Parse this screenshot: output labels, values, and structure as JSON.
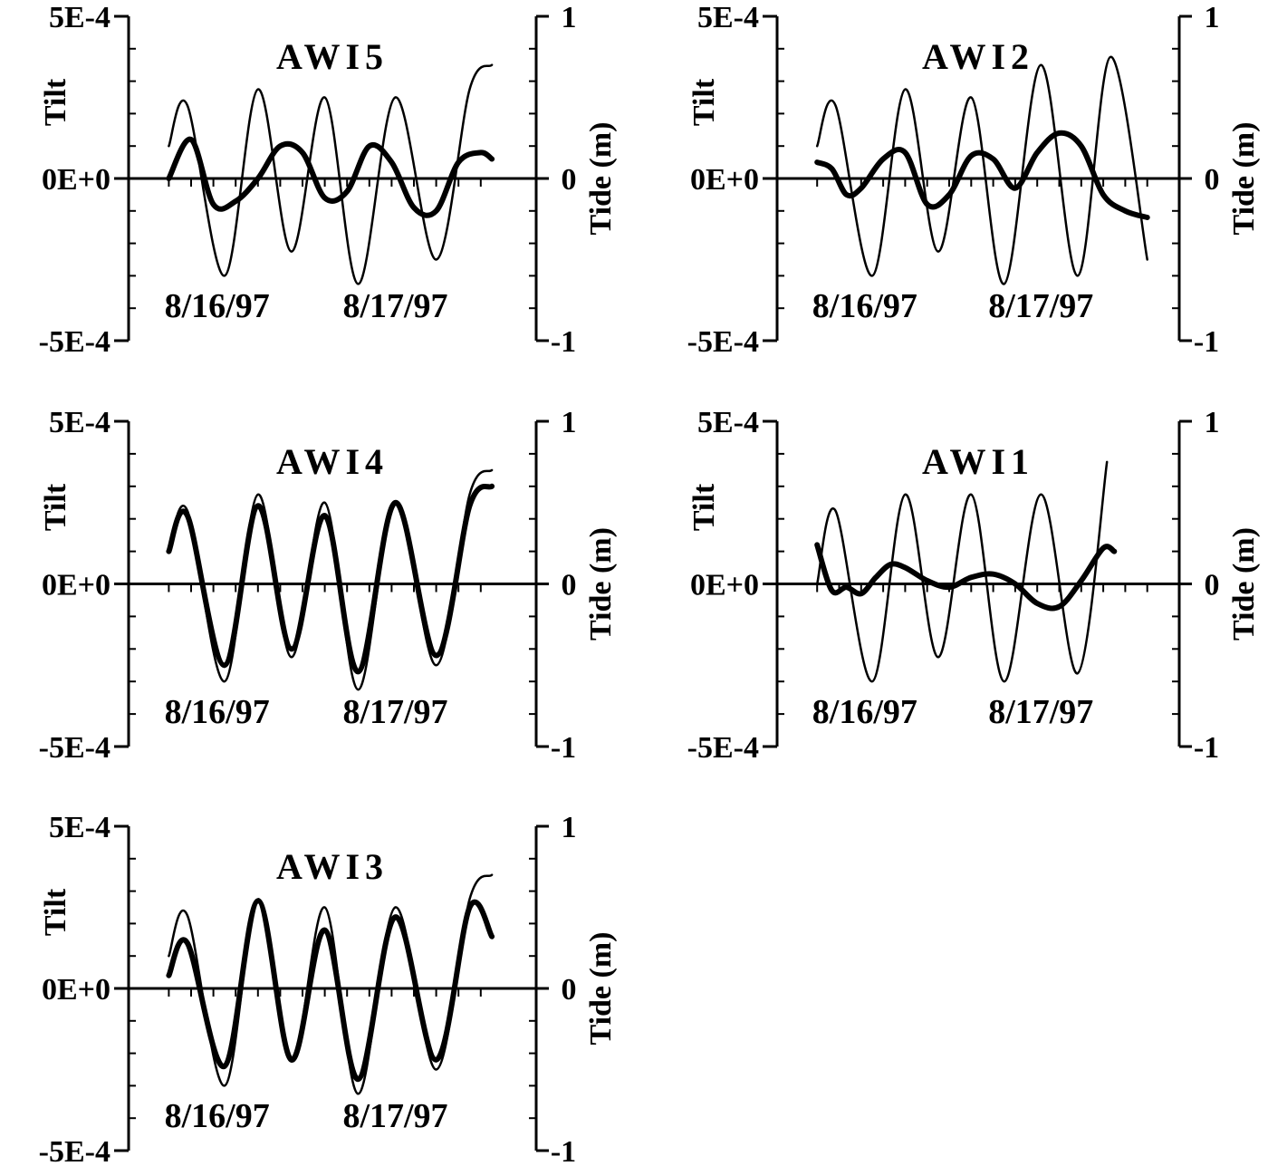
{
  "chart_data": [
    {
      "type": "line",
      "title": "AWI5",
      "ylabel": "Tilt",
      "y2label": "Tide (m)",
      "yticks": [
        "5E-4",
        "0E+0",
        "-5E-4"
      ],
      "y2ticks": [
        "1",
        "0",
        "-1"
      ],
      "ylim": [
        -0.0005,
        0.0005
      ],
      "y2lim": [
        -1,
        1
      ],
      "xlim": [
        0,
        48
      ],
      "date_labels": [
        "8/16/97",
        "8/17/97"
      ],
      "x_hours": [
        2,
        5,
        8,
        11,
        14,
        17,
        20,
        23,
        26,
        29,
        32,
        35,
        38,
        41,
        44
      ],
      "series": [
        {
          "role": "tide",
          "x": [
            2,
            4.5,
            9.5,
            14,
            18.5,
            23,
            27.5,
            32.5,
            38,
            42.5,
            45.5
          ],
          "values": [
            0.2,
            0.45,
            -0.6,
            0.55,
            -0.45,
            0.5,
            -0.65,
            0.5,
            -0.5,
            0.55,
            0.7
          ]
        },
        {
          "role": "tilt",
          "x": [
            2,
            5,
            8,
            11,
            14,
            17,
            20,
            23,
            26,
            29,
            32,
            35,
            38,
            41,
            44,
            45.5
          ],
          "values": [
            0.0,
            0.00012,
            -8e-05,
            -7e-05,
            0.0,
            0.0001,
            8e-05,
            -6e-05,
            -4e-05,
            0.0001,
            5e-05,
            -9e-05,
            -0.0001,
            5e-05,
            8e-05,
            6e-05
          ]
        }
      ]
    },
    {
      "type": "line",
      "title": "AWI2",
      "ylabel": "Tilt",
      "y2label": "Tide (m)",
      "yticks": [
        "5E-4",
        "0E+0",
        "-5E-4"
      ],
      "y2ticks": [
        "1",
        "0",
        "-1"
      ],
      "ylim": [
        -0.0005,
        0.0005
      ],
      "y2lim": [
        -1,
        1
      ],
      "xlim": [
        0,
        48
      ],
      "date_labels": [
        "8/16/97",
        "8/17/97"
      ],
      "x_hours": [
        2,
        5,
        8,
        11,
        14,
        17,
        20,
        23,
        26,
        29,
        32,
        35,
        38,
        41,
        44,
        47
      ],
      "series": [
        {
          "role": "tide",
          "x": [
            2,
            4.5,
            9.5,
            14,
            18.5,
            23,
            27.5,
            32.5,
            37.5,
            42,
            47
          ],
          "values": [
            0.2,
            0.45,
            -0.6,
            0.55,
            -0.45,
            0.5,
            -0.65,
            0.7,
            -0.6,
            0.75,
            -0.5
          ]
        },
        {
          "role": "tilt",
          "x": [
            2,
            4,
            6,
            8,
            11,
            14,
            17,
            20,
            23,
            26,
            29,
            32,
            35,
            38,
            41,
            44,
            47
          ],
          "values": [
            5e-05,
            3e-05,
            -5e-05,
            -3e-05,
            6e-05,
            8e-05,
            -8e-05,
            -5e-05,
            7e-05,
            6e-05,
            -3e-05,
            8e-05,
            0.00014,
            0.0001,
            -5e-05,
            -0.0001,
            -0.00012
          ]
        }
      ]
    },
    {
      "type": "line",
      "title": "AWI4",
      "ylabel": "Tilt",
      "y2label": "Tide (m)",
      "yticks": [
        "5E-4",
        "0E+0",
        "-5E-4"
      ],
      "y2ticks": [
        "1",
        "0",
        "-1"
      ],
      "ylim": [
        -0.0005,
        0.0005
      ],
      "y2lim": [
        -1,
        1
      ],
      "xlim": [
        0,
        48
      ],
      "date_labels": [
        "8/16/97",
        "8/17/97"
      ],
      "x_hours": [
        2,
        5,
        8,
        11,
        14,
        17,
        20,
        23,
        26,
        29,
        32,
        35,
        38,
        41,
        44
      ],
      "series": [
        {
          "role": "tide",
          "x": [
            2,
            4.5,
            9.5,
            14,
            18.5,
            23,
            27.5,
            32.5,
            38,
            42.5,
            45.5
          ],
          "values": [
            0.2,
            0.45,
            -0.6,
            0.55,
            -0.45,
            0.5,
            -0.65,
            0.5,
            -0.5,
            0.55,
            0.7
          ]
        },
        {
          "role": "tilt",
          "x": [
            2,
            4.5,
            9.5,
            14,
            18.5,
            23,
            27.5,
            32.5,
            38,
            42.5,
            45.5
          ],
          "values": [
            0.0001,
            0.00021,
            -0.00025,
            0.00024,
            -0.0002,
            0.00021,
            -0.00027,
            0.00025,
            -0.00022,
            0.00024,
            0.0003
          ]
        }
      ]
    },
    {
      "type": "line",
      "title": "AWI1",
      "ylabel": "Tilt",
      "y2label": "Tide (m)",
      "yticks": [
        "5E-4",
        "0E+0",
        "-5E-4"
      ],
      "y2ticks": [
        "1",
        "0",
        "-1"
      ],
      "ylim": [
        -0.0005,
        0.0005
      ],
      "y2lim": [
        -1,
        1
      ],
      "xlim": [
        0,
        48
      ],
      "date_labels": [
        "8/16/97",
        "8/17/97"
      ],
      "x_hours": [
        2,
        5,
        8,
        11,
        14,
        17,
        20,
        23,
        26,
        29,
        32,
        35,
        38,
        41,
        44,
        47
      ],
      "series": [
        {
          "role": "tide",
          "x": [
            2,
            4.5,
            9.5,
            14,
            18.5,
            23,
            27.5,
            32.5,
            37.5,
            41.5
          ],
          "values": [
            0.0,
            0.45,
            -0.6,
            0.55,
            -0.45,
            0.55,
            -0.6,
            0.55,
            -0.55,
            0.75
          ]
        },
        {
          "role": "tilt",
          "x": [
            2,
            4,
            6,
            8,
            10,
            12,
            14,
            17,
            20,
            23,
            26,
            29,
            32,
            35,
            38,
            41,
            42.5
          ],
          "values": [
            0.00012,
            -2e-05,
            -1e-05,
            -3e-05,
            2e-05,
            6e-05,
            5e-05,
            1e-05,
            -1e-05,
            2e-05,
            3e-05,
            0.0,
            -6e-05,
            -7e-05,
            1e-05,
            0.00011,
            0.0001
          ]
        }
      ]
    },
    {
      "type": "line",
      "title": "AWI3",
      "ylabel": "Tilt",
      "y2label": "Tide (m)",
      "yticks": [
        "5E-4",
        "0E+0",
        "-5E-4"
      ],
      "y2ticks": [
        "1",
        "0",
        "-1"
      ],
      "ylim": [
        -0.0005,
        0.0005
      ],
      "y2lim": [
        -1,
        1
      ],
      "xlim": [
        0,
        48
      ],
      "date_labels": [
        "8/16/97",
        "8/17/97"
      ],
      "x_hours": [
        2,
        5,
        8,
        11,
        14,
        17,
        20,
        23,
        26,
        29,
        32,
        35,
        38,
        41,
        44
      ],
      "series": [
        {
          "role": "tide",
          "x": [
            2,
            4.5,
            9.5,
            14,
            18.5,
            23,
            27.5,
            32.5,
            38,
            42.5,
            45.5
          ],
          "values": [
            0.2,
            0.45,
            -0.6,
            0.55,
            -0.45,
            0.5,
            -0.65,
            0.5,
            -0.5,
            0.55,
            0.7
          ]
        },
        {
          "role": "tilt",
          "x": [
            2,
            4.5,
            9.5,
            14,
            18.5,
            23,
            27.5,
            32.5,
            38,
            42.5,
            45.5
          ],
          "values": [
            4e-05,
            0.00014,
            -0.00024,
            0.00027,
            -0.00022,
            0.00018,
            -0.00028,
            0.00022,
            -0.00022,
            0.00025,
            0.00016
          ]
        }
      ]
    }
  ]
}
